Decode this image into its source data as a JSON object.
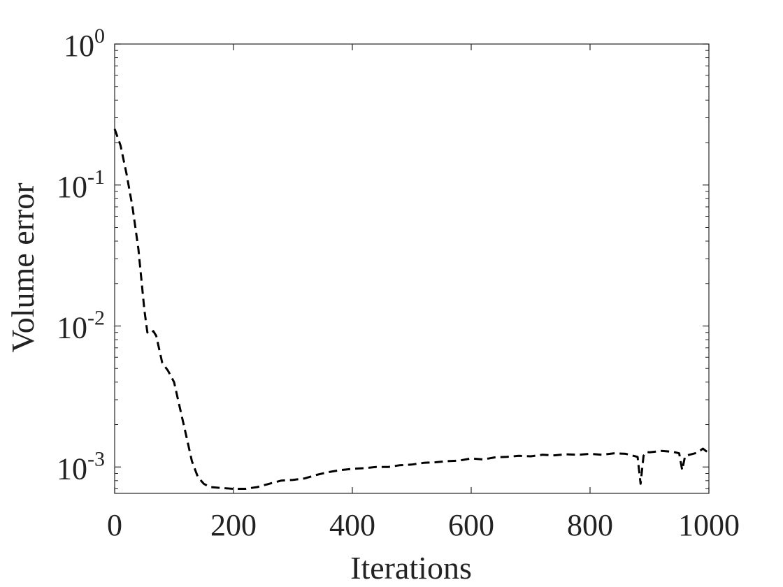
{
  "chart_data": {
    "type": "line",
    "title": "",
    "xlabel": "Iterations",
    "ylabel": "Volume error",
    "xlim": [
      0,
      1000
    ],
    "ylim": [
      0.00065,
      1
    ],
    "yscale": "log",
    "grid": false,
    "legend": "none",
    "x_ticks": [
      "0",
      "200",
      "400",
      "600",
      "800",
      "1000"
    ],
    "y_ticks": [
      {
        "base": "10",
        "exp": "0"
      },
      {
        "base": "10",
        "exp": "-1"
      },
      {
        "base": "10",
        "exp": "-2"
      },
      {
        "base": "10",
        "exp": "-3"
      }
    ],
    "series": [
      {
        "style": "dashed",
        "color": "#000000",
        "x": [
          0,
          10,
          20,
          30,
          40,
          50,
          55,
          60,
          65,
          70,
          80,
          90,
          100,
          110,
          120,
          130,
          140,
          150,
          160,
          180,
          200,
          220,
          240,
          260,
          280,
          300,
          320,
          340,
          360,
          380,
          400,
          420,
          440,
          460,
          480,
          500,
          520,
          540,
          560,
          580,
          600,
          620,
          640,
          660,
          680,
          700,
          720,
          740,
          760,
          780,
          800,
          820,
          840,
          860,
          880,
          885,
          890,
          895,
          900,
          920,
          940,
          950,
          955,
          960,
          980,
          990,
          1000
        ],
        "y": [
          0.25,
          0.19,
          0.12,
          0.07,
          0.035,
          0.013,
          0.009,
          0.0088,
          0.0092,
          0.0085,
          0.0055,
          0.0048,
          0.004,
          0.0026,
          0.0017,
          0.0011,
          0.00085,
          0.00076,
          0.00072,
          0.00071,
          0.0007,
          0.0007,
          0.00072,
          0.00076,
          0.0008,
          0.00081,
          0.00083,
          0.00088,
          0.00092,
          0.00095,
          0.00097,
          0.00098,
          0.001,
          0.001,
          0.00103,
          0.00104,
          0.00107,
          0.00108,
          0.0011,
          0.00111,
          0.00115,
          0.00113,
          0.00117,
          0.00118,
          0.0012,
          0.00119,
          0.00122,
          0.00121,
          0.00123,
          0.00122,
          0.00124,
          0.00122,
          0.00125,
          0.00124,
          0.00118,
          0.00076,
          0.0012,
          0.00128,
          0.00127,
          0.0013,
          0.00128,
          0.00125,
          0.00095,
          0.0012,
          0.00126,
          0.00135,
          0.00125
        ]
      }
    ]
  }
}
